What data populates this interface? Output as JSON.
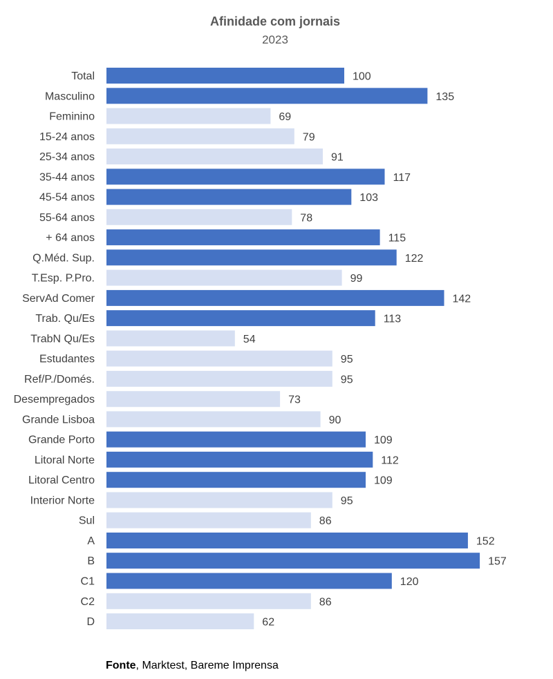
{
  "chart_data": {
    "type": "bar",
    "orientation": "horizontal",
    "title": "Afinidade com jornais",
    "subtitle": "2023",
    "categories": [
      "Total",
      "Masculino",
      "Feminino",
      "15-24 anos",
      "25-34 anos",
      "35-44 anos",
      "45-54 anos",
      "55-64 anos",
      "+ 64  anos",
      "Q.Méd. Sup.",
      "T.Esp. P.Pro.",
      "ServAd Comer",
      "Trab. Qu/Es",
      "TrabN Qu/Es",
      "Estudantes",
      "Ref/P./Domés.",
      "Desempregados",
      "Grande Lisboa",
      "Grande Porto",
      "Litoral Norte",
      "Litoral Centro",
      "Interior Norte",
      "Sul",
      "A",
      "B",
      "C1",
      "C2",
      "D"
    ],
    "values": [
      100,
      135,
      69,
      79,
      91,
      117,
      103,
      78,
      115,
      122,
      99,
      142,
      113,
      54,
      95,
      95,
      73,
      90,
      109,
      112,
      109,
      95,
      86,
      152,
      157,
      120,
      86,
      62
    ],
    "highlight_threshold": 100,
    "colors": {
      "highlight": "#4472c4",
      "normal": "#d6dff2"
    },
    "xlim": [
      0,
      157
    ],
    "grid": false
  },
  "source": {
    "label": "Fonte",
    "text": ", Marktest, Bareme Imprensa"
  }
}
